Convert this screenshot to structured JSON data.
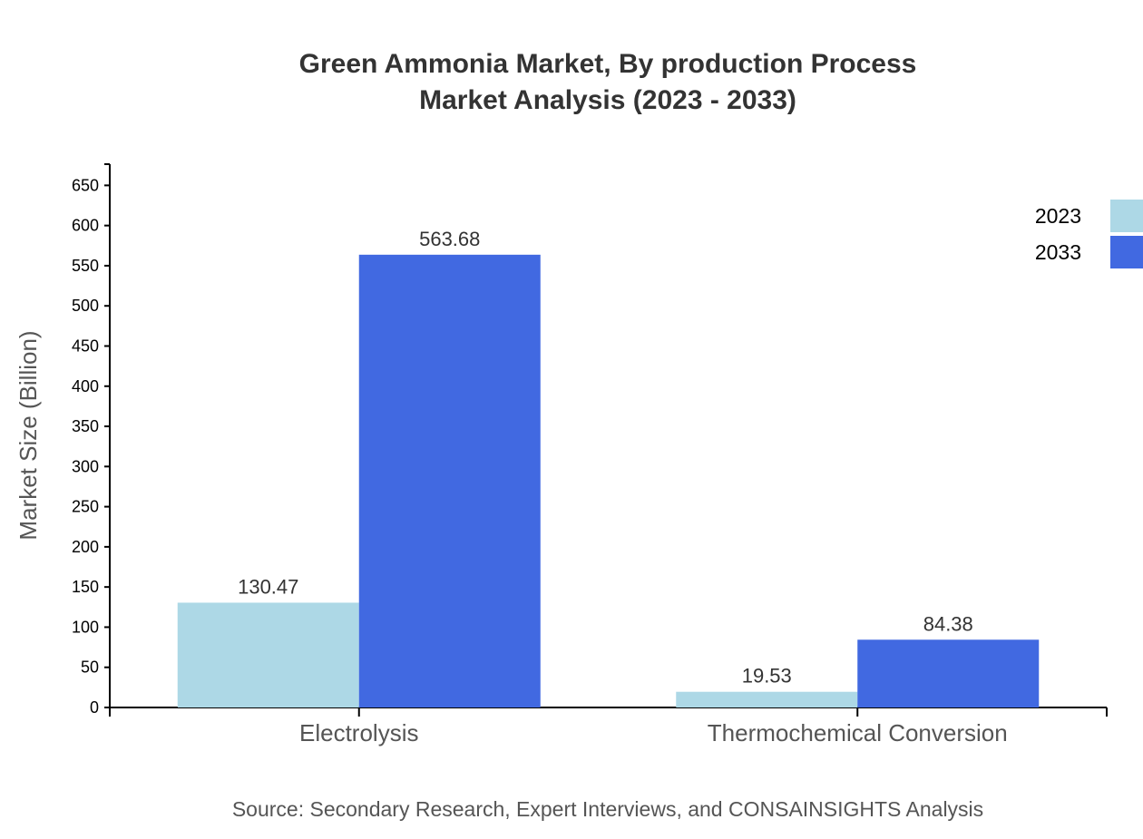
{
  "chart_data": {
    "type": "bar",
    "title": [
      "Green Ammonia Market, By production Process",
      "Market Analysis (2023 - 2033)"
    ],
    "ylabel": "Market Size (Billion)",
    "xlabel": "",
    "categories": [
      "Electrolysis",
      "Thermochemical Conversion"
    ],
    "series": [
      {
        "name": "2023",
        "values": [
          130.47,
          19.53
        ],
        "color": "#add8e6"
      },
      {
        "name": "2033",
        "values": [
          563.68,
          84.38
        ],
        "color": "#4169e1"
      }
    ],
    "ylim": [
      0,
      676.4
    ],
    "yticks": [
      0,
      50,
      100,
      150,
      200,
      250,
      300,
      350,
      400,
      450,
      500,
      550,
      600,
      650
    ],
    "grid": false,
    "legend": "top-right",
    "source": "Source: Secondary Research, Expert Interviews, and CONSAINSIGHTS Analysis"
  }
}
